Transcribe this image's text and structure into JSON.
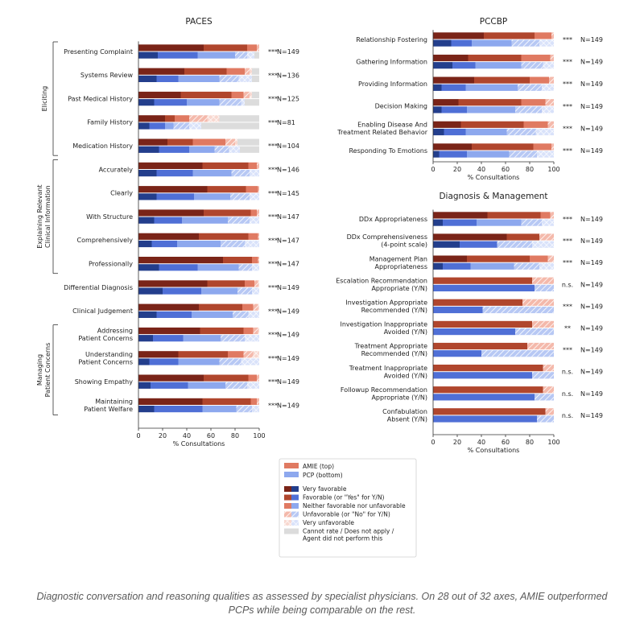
{
  "colors": {
    "amie": [
      "#7a2418",
      "#b0462d",
      "#e07a62",
      "#f4b9ab",
      "#f8d8d0"
    ],
    "pcp": [
      "#233e8c",
      "#4f6fd6",
      "#8da8ee",
      "#b7c8f4",
      "#d9e2fa"
    ],
    "na": "#dcdcdc",
    "hatch": "#ffffff"
  },
  "legend": {
    "amie_label": "AMIE (top)",
    "pcp_label": "PCP (bottom)",
    "categories": [
      "Very favorable",
      "Favorable (or \"Yes\" for Y/N)",
      "Neither favorable nor unfavorable",
      "Unfavorable (or \"No\" for Y/N)",
      "Very unfavorable",
      "Cannot rate / Does not apply / Agent did not perform this"
    ]
  },
  "caption": "Diagnostic conversation and reasoning qualities as assessed by specialist physicians. On 28 out of 32 axes, AMIE outperformed PCPs while being comparable on the rest.",
  "chart_data": [
    {
      "type": "bar",
      "orientation": "horizontal",
      "stacked": true,
      "title": "PACES",
      "xlabel": "% Consultations",
      "xlim": [
        0,
        100
      ],
      "xticks": [
        0,
        20,
        40,
        60,
        80,
        100
      ],
      "series_order": [
        "Very favorable",
        "Favorable",
        "Neither",
        "Unfavorable",
        "Very unfavorable",
        "Cannot rate"
      ],
      "groups": [
        {
          "label": "Eliciting",
          "from": 0,
          "to": 4
        },
        {
          "label": "Explaining Relevant Clinical Information",
          "from": 5,
          "to": 9
        },
        {
          "label": "Managing Patient Concerns",
          "from": 12,
          "to": 15
        }
      ],
      "rows": [
        {
          "label": "Presenting Complaint",
          "sig": "***",
          "n": "N=149",
          "amie": [
            54,
            36,
            8,
            2,
            0,
            0
          ],
          "pcp": [
            16,
            33,
            31,
            10,
            6,
            4
          ]
        },
        {
          "label": "Systems Review",
          "sig": "***",
          "n": "N=136",
          "amie": [
            38,
            35,
            15,
            4,
            2,
            6
          ],
          "pcp": [
            15,
            18,
            34,
            16,
            11,
            6
          ]
        },
        {
          "label": "Past Medical History",
          "sig": "***",
          "n": "N=125",
          "amie": [
            35,
            42,
            10,
            5,
            2,
            6
          ],
          "pcp": [
            13,
            27,
            27,
            18,
            3,
            12
          ]
        },
        {
          "label": "Family History",
          "sig": "***",
          "n": "N=81",
          "amie": [
            22,
            8,
            12,
            15,
            10,
            33
          ],
          "pcp": [
            9,
            13,
            7,
            13,
            10,
            48
          ]
        },
        {
          "label": "Medication History",
          "sig": "***",
          "n": "N=104",
          "amie": [
            24,
            21,
            27,
            8,
            2,
            18
          ],
          "pcp": [
            17,
            25,
            21,
            12,
            9,
            16
          ]
        },
        {
          "label": "Accurately",
          "sig": "***",
          "n": "N=146",
          "amie": [
            53,
            38,
            7,
            2,
            0,
            0
          ],
          "pcp": [
            15,
            30,
            32,
            15,
            8,
            0
          ]
        },
        {
          "label": "Clearly",
          "sig": "***",
          "n": "N=145",
          "amie": [
            57,
            32,
            10,
            1,
            0,
            0
          ],
          "pcp": [
            15,
            31,
            30,
            16,
            8,
            0
          ]
        },
        {
          "label": "With Structure",
          "sig": "***",
          "n": "N=147",
          "amie": [
            54,
            39,
            5,
            2,
            0,
            0
          ],
          "pcp": [
            13,
            23,
            38,
            18,
            8,
            0
          ]
        },
        {
          "label": "Comprehensively",
          "sig": "***",
          "n": "N=147",
          "amie": [
            50,
            41,
            8,
            1,
            0,
            0
          ],
          "pcp": [
            11,
            21,
            36,
            20,
            12,
            0
          ]
        },
        {
          "label": "Professionally",
          "sig": "***",
          "n": "N=147",
          "amie": [
            70,
            24,
            5,
            1,
            0,
            0
          ],
          "pcp": [
            17,
            32,
            34,
            11,
            6,
            0
          ]
        },
        {
          "label": "Differential Diagnosis",
          "sig": "***",
          "n": "N=149",
          "amie": [
            57,
            31,
            8,
            3,
            1,
            0
          ],
          "pcp": [
            20,
            32,
            30,
            12,
            6,
            0
          ]
        },
        {
          "label": "Clinical Judgement",
          "sig": "***",
          "n": "N=149",
          "amie": [
            50,
            36,
            9,
            4,
            1,
            0
          ],
          "pcp": [
            15,
            29,
            34,
            13,
            9,
            0
          ]
        },
        {
          "label": "Addressing\nPatient Concerns",
          "sig": "***",
          "n": "N=149",
          "amie": [
            51,
            36,
            8,
            4,
            1,
            0
          ],
          "pcp": [
            12,
            25,
            31,
            20,
            12,
            0
          ]
        },
        {
          "label": "Understanding\nPatient Concerns",
          "sig": "***",
          "n": "N=149",
          "amie": [
            33,
            41,
            13,
            8,
            5,
            0
          ],
          "pcp": [
            9,
            24,
            34,
            18,
            15,
            0
          ]
        },
        {
          "label": "Showing Empathy",
          "sig": "***",
          "n": "N=149",
          "amie": [
            54,
            37,
            7,
            2,
            0,
            0
          ],
          "pcp": [
            10,
            31,
            31,
            18,
            10,
            0
          ]
        },
        {
          "label": "Maintaining\nPatient Welfare",
          "sig": "***",
          "n": "N=149",
          "amie": [
            53,
            40,
            5,
            2,
            0,
            0
          ],
          "pcp": [
            13,
            40,
            28,
            13,
            6,
            0
          ]
        }
      ]
    },
    {
      "type": "bar",
      "orientation": "horizontal",
      "stacked": true,
      "title": "PCCBP",
      "xlabel": "% Consultations",
      "xlim": [
        0,
        100
      ],
      "xticks": [
        0,
        20,
        40,
        60,
        80,
        100
      ],
      "rows": [
        {
          "label": "Relationship Fostering",
          "sig": "***",
          "n": "N=149",
          "amie": [
            42,
            42,
            14,
            2,
            0,
            0
          ],
          "pcp": [
            15,
            17,
            33,
            23,
            12,
            0
          ]
        },
        {
          "label": "Gathering Information",
          "sig": "***",
          "n": "N=149",
          "amie": [
            29,
            44,
            24,
            3,
            0,
            0
          ],
          "pcp": [
            16,
            19,
            38,
            18,
            9,
            0
          ]
        },
        {
          "label": "Providing Information",
          "sig": "***",
          "n": "N=149",
          "amie": [
            34,
            46,
            16,
            4,
            0,
            0
          ],
          "pcp": [
            7,
            20,
            43,
            20,
            10,
            0
          ]
        },
        {
          "label": "Decision Making",
          "sig": "***",
          "n": "N=149",
          "amie": [
            21,
            52,
            20,
            7,
            0,
            0
          ],
          "pcp": [
            7,
            21,
            40,
            22,
            10,
            0
          ]
        },
        {
          "label": "Enabling Disease And\nTreatment Related Behavior",
          "sig": "***",
          "n": "N=149",
          "amie": [
            23,
            52,
            20,
            5,
            0,
            0
          ],
          "pcp": [
            9,
            18,
            34,
            24,
            15,
            0
          ]
        },
        {
          "label": "Responding To Emotions",
          "sig": "***",
          "n": "N=149",
          "amie": [
            32,
            51,
            15,
            2,
            0,
            0
          ],
          "pcp": [
            5,
            23,
            35,
            23,
            14,
            0
          ]
        }
      ]
    },
    {
      "type": "bar",
      "orientation": "horizontal",
      "stacked": true,
      "title": "Diagnosis & Management",
      "xlabel": "% Consultations",
      "xlim": [
        0,
        100
      ],
      "xticks": [
        0,
        20,
        40,
        60,
        80,
        100
      ],
      "rows": [
        {
          "label": "DDx Appropriateness",
          "sig": "***",
          "n": "N=149",
          "amie": [
            45,
            44,
            8,
            3,
            0,
            0
          ],
          "pcp": [
            8,
            28,
            37,
            17,
            10,
            0
          ]
        },
        {
          "label": "DDx Comprehensiveness\n(4-point scale)",
          "sig": "***",
          "n": "N=149",
          "amie": [
            61,
            27,
            0,
            12,
            0,
            0
          ],
          "pcp": [
            22,
            31,
            0,
            29,
            18,
            0
          ]
        },
        {
          "label": "Management Plan\nAppropriateness",
          "sig": "***",
          "n": "N=149",
          "amie": [
            28,
            52,
            15,
            5,
            0,
            0
          ],
          "pcp": [
            8,
            23,
            36,
            21,
            12,
            0
          ]
        },
        {
          "label": "Escalation Recommendation\nAppropriate (Y/N)",
          "sig": "n.s.",
          "n": "N=149",
          "amie": [
            0,
            82,
            0,
            18,
            0,
            0
          ],
          "pcp": [
            0,
            84,
            0,
            16,
            0,
            0
          ]
        },
        {
          "label": "Investigation Appropriate\nRecommended (Y/N)",
          "sig": "***",
          "n": "N=149",
          "amie": [
            0,
            74,
            0,
            26,
            0,
            0
          ],
          "pcp": [
            0,
            41,
            0,
            59,
            0,
            0
          ]
        },
        {
          "label": "Investigation Inappropriate\nAvoided (Y/N)",
          "sig": "**",
          "n": "N=149",
          "amie": [
            0,
            82,
            0,
            18,
            0,
            0
          ],
          "pcp": [
            0,
            68,
            0,
            32,
            0,
            0
          ]
        },
        {
          "label": "Treatment Appropriate\nRecommended (Y/N)",
          "sig": "***",
          "n": "N=149",
          "amie": [
            0,
            78,
            0,
            22,
            0,
            0
          ],
          "pcp": [
            0,
            40,
            0,
            60,
            0,
            0
          ]
        },
        {
          "label": "Treatment Inappropriate\nAvoided (Y/N)",
          "sig": "n.s.",
          "n": "N=149",
          "amie": [
            0,
            91,
            0,
            9,
            0,
            0
          ],
          "pcp": [
            0,
            82,
            0,
            18,
            0,
            0
          ]
        },
        {
          "label": "Followup Recommendation\nAppropriate (Y/N)",
          "sig": "n.s.",
          "n": "N=149",
          "amie": [
            0,
            91,
            0,
            9,
            0,
            0
          ],
          "pcp": [
            0,
            84,
            0,
            16,
            0,
            0
          ]
        },
        {
          "label": "Confabulation\nAbsent (Y/N)",
          "sig": "n.s.",
          "n": "N=149",
          "amie": [
            0,
            93,
            0,
            7,
            0,
            0
          ],
          "pcp": [
            0,
            86,
            0,
            14,
            0,
            0
          ]
        }
      ]
    }
  ]
}
